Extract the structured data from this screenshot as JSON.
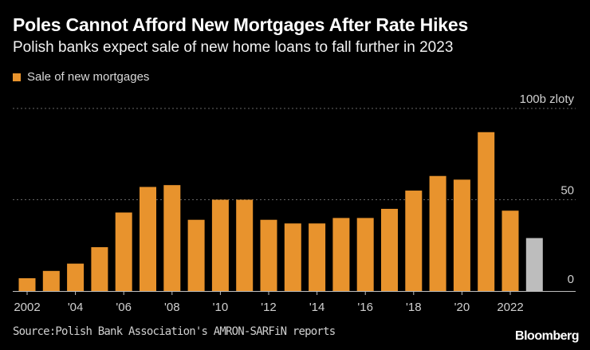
{
  "title": "Poles Cannot Afford New Mortgages After Rate Hikes",
  "subtitle": "Polish banks expect sale of new home loans to fall further in 2023",
  "legend_label": "Sale of new mortgages",
  "source": "Source:Polish Bank Association's AMRON-SARFiN reports",
  "logo": "Bloomberg",
  "colors": {
    "bar": "#e8932d",
    "forecast": "#bdbdbd",
    "grid": "#666666",
    "axis": "#bfbfbf"
  },
  "chart_data": {
    "type": "bar",
    "categories": [
      "2002",
      "2003",
      "2004",
      "2005",
      "2006",
      "2007",
      "2008",
      "2009",
      "2010",
      "2011",
      "2012",
      "2013",
      "2014",
      "2015",
      "2016",
      "2017",
      "2018",
      "2019",
      "2020",
      "2021",
      "2022",
      "2023"
    ],
    "values": [
      7,
      11,
      15,
      24,
      43,
      57,
      58,
      39,
      50,
      50,
      39,
      37,
      37,
      40,
      40,
      45,
      55,
      63,
      61,
      87,
      44,
      29
    ],
    "forecast_categories": [
      "2023"
    ],
    "x_tick_labels": [
      "2002",
      "'04",
      "'06",
      "'08",
      "'10",
      "'12",
      "'14",
      "'16",
      "'18",
      "'20",
      "2022"
    ],
    "x_tick_categories": [
      "2002",
      "2004",
      "2006",
      "2008",
      "2010",
      "2012",
      "2014",
      "2016",
      "2018",
      "2020",
      "2022"
    ],
    "y_ticks": [
      0,
      50,
      100
    ],
    "y_tick_labels": [
      "0",
      "50",
      "100b zloty"
    ],
    "ylim": [
      0,
      100
    ],
    "grid": true,
    "legend_position": "top-left"
  }
}
